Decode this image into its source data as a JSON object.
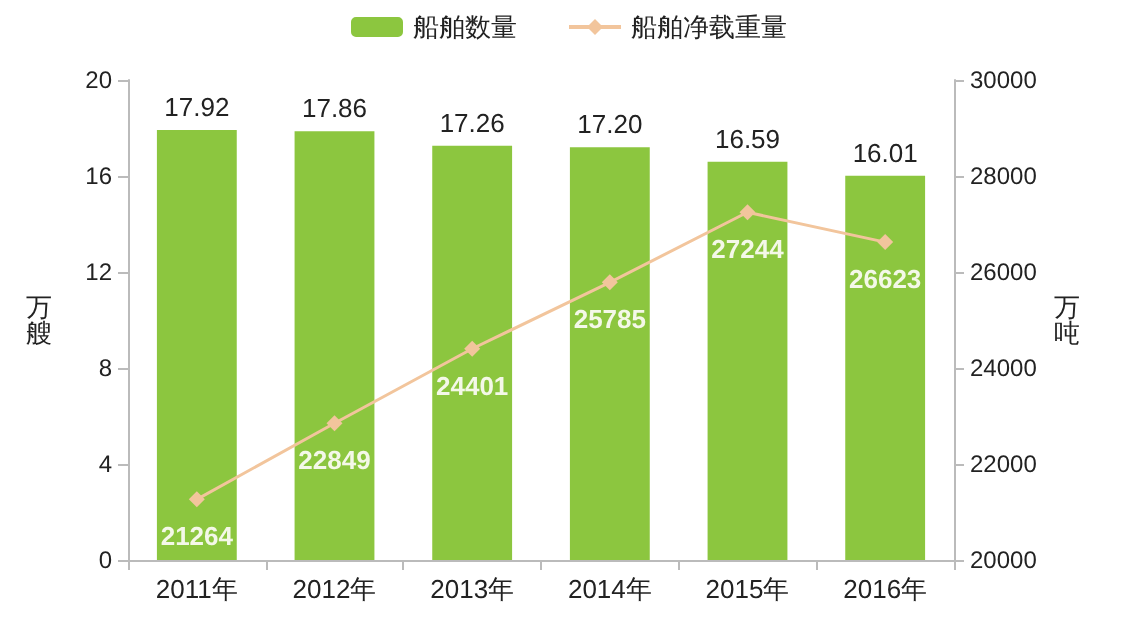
{
  "chart_data": {
    "type": "bar",
    "categories": [
      "2011年",
      "2012年",
      "2013年",
      "2014年",
      "2015年",
      "2016年"
    ],
    "series": [
      {
        "name": "船舶数量",
        "color": "#8cc63f",
        "values": [
          17.92,
          17.86,
          17.26,
          17.2,
          16.59,
          16.01
        ],
        "value_labels": [
          "17.92",
          "17.86",
          "17.26",
          "17.20",
          "16.59",
          "16.01"
        ]
      },
      {
        "name": "船舶净载重量",
        "type": "line",
        "axis": "y2",
        "color": "#f2c59c",
        "marker": "diamond",
        "values": [
          21264,
          22849,
          24401,
          25785,
          27244,
          26623
        ],
        "value_labels": [
          "21264",
          "22849",
          "24401",
          "25785",
          "27244",
          "26623"
        ]
      }
    ],
    "ylabel": "万艘",
    "y2label": "万吨",
    "ylim": [
      0,
      20
    ],
    "yticks": [
      0,
      4,
      8,
      12,
      16,
      20
    ],
    "y2lim": [
      20000,
      30000
    ],
    "y2ticks": [
      20000,
      22000,
      24000,
      26000,
      28000,
      30000
    ],
    "grid": false,
    "legend": "top"
  }
}
